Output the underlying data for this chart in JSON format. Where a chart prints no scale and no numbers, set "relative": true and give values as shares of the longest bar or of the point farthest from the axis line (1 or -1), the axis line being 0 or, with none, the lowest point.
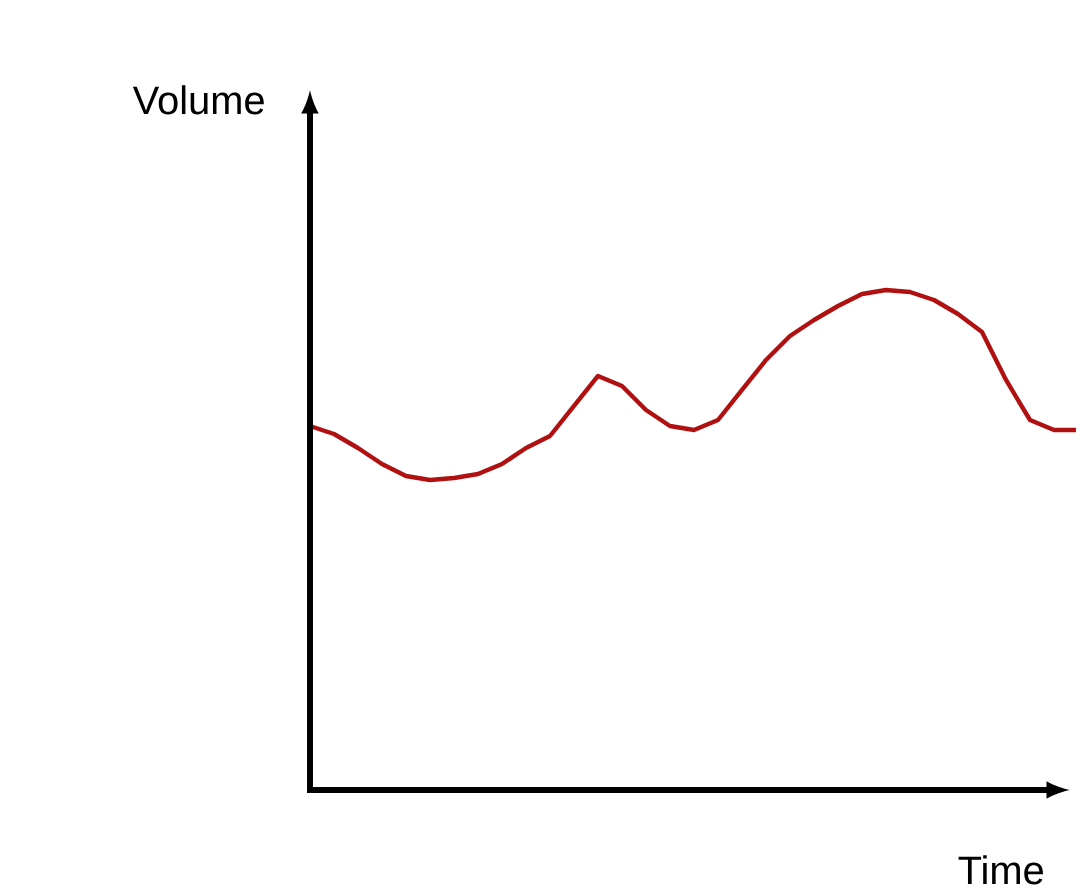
{
  "chart_data": {
    "type": "line",
    "relative": true,
    "xlabel": "Time",
    "ylabel": "Volume",
    "categories": [
      null,
      null,
      null,
      null,
      null,
      null,
      null,
      null,
      null,
      null,
      null,
      null,
      null,
      null,
      null,
      null,
      null,
      null,
      null,
      null,
      null,
      null,
      null,
      null,
      null,
      null,
      null,
      null,
      null,
      null,
      null,
      null,
      null
    ],
    "series": [
      {
        "color": "#b01010",
        "values": [
          0.728,
          0.712,
          0.684,
          0.652,
          0.628,
          0.62,
          0.624,
          0.632,
          0.652,
          0.684,
          0.708,
          0.768,
          0.828,
          0.808,
          0.76,
          0.728,
          0.72,
          0.74,
          0.8,
          0.86,
          0.908,
          0.94,
          0.968,
          0.992,
          1,
          0.996,
          0.98,
          0.952,
          0.916,
          0.82,
          0.74,
          0.72,
          0.72
        ]
      }
    ]
  }
}
